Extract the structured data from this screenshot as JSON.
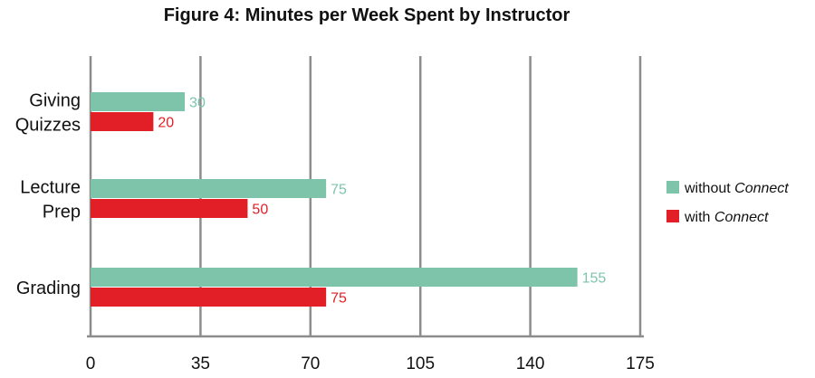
{
  "chart_data": {
    "type": "bar",
    "orientation": "horizontal",
    "title": "Figure 4: Minutes per Week Spent by Instructor",
    "categories": [
      "Giving Quizzes",
      "Lecture Prep",
      "Grading"
    ],
    "category_lines": [
      [
        "Giving",
        "Quizzes"
      ],
      [
        "Lecture",
        "Prep"
      ],
      [
        "Grading"
      ]
    ],
    "series": [
      {
        "name": "without Connect",
        "name_plain": "without",
        "name_italic": "Connect",
        "color": "#7dc4ab",
        "values": [
          30,
          75,
          155
        ]
      },
      {
        "name": "with Connect",
        "name_plain": "with",
        "name_italic": "Connect",
        "color": "#e21e26",
        "values": [
          20,
          50,
          75
        ]
      }
    ],
    "xlim": [
      0,
      175
    ],
    "xticks": [
      0,
      35,
      70,
      105,
      140,
      175
    ],
    "grid": true,
    "legend_position": "right",
    "data_labels": true
  }
}
